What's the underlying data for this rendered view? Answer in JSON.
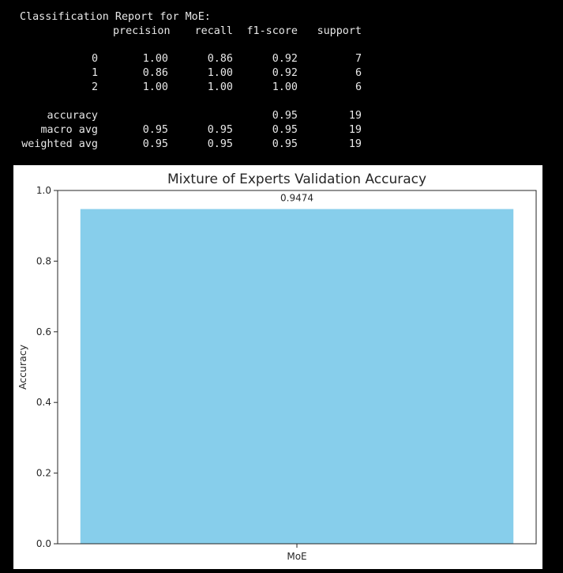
{
  "report": {
    "title": "Classification Report for MoE:",
    "headers": [
      "precision",
      "recall",
      "f1-score",
      "support"
    ],
    "rows": [
      {
        "label": "0",
        "precision": "1.00",
        "recall": "0.86",
        "f1": "0.92",
        "support": "7"
      },
      {
        "label": "1",
        "precision": "0.86",
        "recall": "1.00",
        "f1": "0.92",
        "support": "6"
      },
      {
        "label": "2",
        "precision": "1.00",
        "recall": "1.00",
        "f1": "1.00",
        "support": "6"
      }
    ],
    "summary": [
      {
        "label": "accuracy",
        "precision": "",
        "recall": "",
        "f1": "0.95",
        "support": "19"
      },
      {
        "label": "macro avg",
        "precision": "0.95",
        "recall": "0.95",
        "f1": "0.95",
        "support": "19"
      },
      {
        "label": "weighted avg",
        "precision": "0.95",
        "recall": "0.95",
        "f1": "0.95",
        "support": "19"
      }
    ]
  },
  "chart_data": {
    "type": "bar",
    "title": "Mixture of Experts Validation Accuracy",
    "xlabel": "",
    "ylabel": "Accuracy",
    "categories": [
      "MoE"
    ],
    "values": [
      0.9474
    ],
    "data_labels": [
      "0.9474"
    ],
    "ylim": [
      0,
      1.0
    ],
    "yticks": [
      "0.0",
      "0.2",
      "0.4",
      "0.6",
      "0.8",
      "1.0"
    ],
    "ytick_values": [
      0,
      0.2,
      0.4,
      0.6,
      0.8,
      1.0
    ],
    "grid": false,
    "bar_color": "#87ceeb"
  }
}
